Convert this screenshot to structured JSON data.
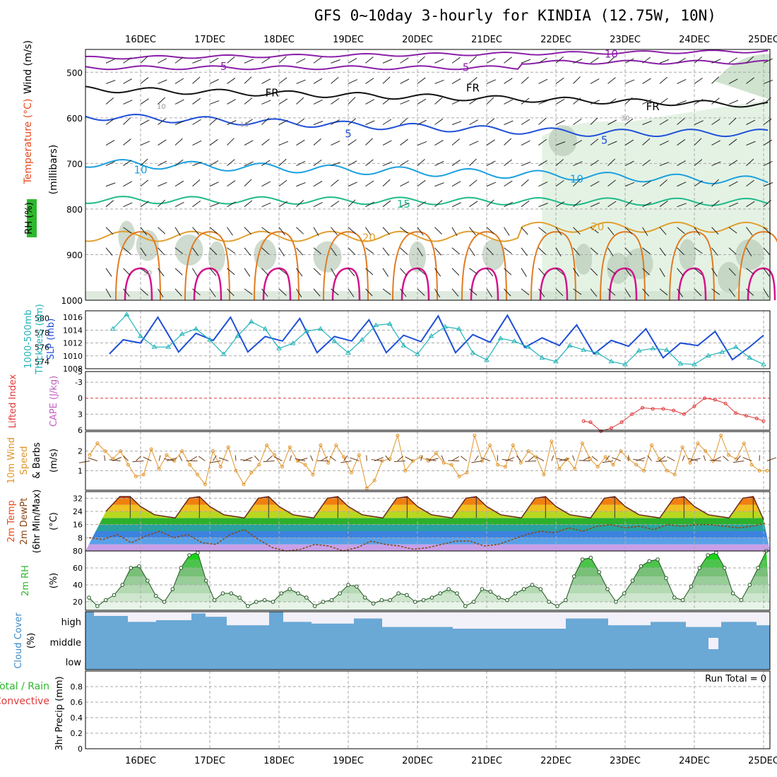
{
  "title": "GFS 0~10day 3-hourly for KINDIA (12.75W, 10N)",
  "dates": [
    "16DEC",
    "17DEC",
    "18DEC",
    "19DEC",
    "20DEC",
    "21DEC",
    "22DEC",
    "23DEC",
    "24DEC",
    "25DEC"
  ],
  "labels": {
    "p1": [
      "Wind (m/s)",
      "Temperature (°C)",
      "RH (%)",
      "(millibars)"
    ],
    "p2": [
      "1000-500mb",
      "Thickness (dm)",
      "SLP (mb)"
    ],
    "p3": [
      "Lifted Index",
      "CAPE (J/kg)"
    ],
    "p4": [
      "10m Wind",
      "Speed",
      "& Barbs",
      "(m/s)"
    ],
    "p5": [
      "2m Temp",
      "2m DewPt",
      "(6hr Min/Max)",
      "(°C)"
    ],
    "p6": [
      "2m RH",
      "(%)"
    ],
    "p7": [
      "Cloud Cover",
      "(%)"
    ],
    "p8": [
      "Total / Rain",
      "Convective",
      "3hr Precip (mm)"
    ]
  },
  "run_total": "Run Total = 0",
  "colors": {
    "slp": "#1f4fd8",
    "thickness": "#22b3b8",
    "li": "#e03a3a",
    "wind10": "#e0952a",
    "cloud": "#6aa8d6",
    "rh": "#2db82d",
    "temp_hi": "#cc2200",
    "dew": "#8b4513"
  },
  "chart_data": [
    {
      "type": "contour",
      "name": "upper-air cross section",
      "ylabel": "millibars",
      "y_ticks": [
        500,
        600,
        700,
        800,
        900,
        1000
      ],
      "contour_labels": [
        "5",
        "5",
        "10",
        "FR",
        "FR",
        "FR",
        "5",
        "5",
        "10",
        "10",
        "15",
        "20",
        "20",
        "30",
        "30",
        "10",
        "10"
      ],
      "rh_levels_pct": [
        30,
        50,
        70,
        90
      ]
    },
    {
      "type": "line",
      "name": "1000-500mb thickness and SLP",
      "x_unit": "days since 15DEC 12Z",
      "slp_ticks": [
        1008,
        1010,
        1012,
        1014,
        1016
      ],
      "thickness_ticks": [
        574,
        576,
        578,
        580
      ],
      "slp_ylim": [
        1008,
        1017
      ],
      "thickness_ylim": [
        573,
        581
      ],
      "series": [
        {
          "name": "SLP (mb)",
          "x": [
            0.05,
            0.25,
            0.5,
            0.75,
            1.05,
            1.3,
            1.55,
            1.8,
            2.05,
            2.3,
            2.55,
            2.8,
            3.05,
            3.3,
            3.55,
            3.8,
            4.05,
            4.3,
            4.55,
            4.8,
            5.05,
            5.3,
            5.55,
            5.8,
            6.05,
            6.3,
            6.55,
            6.8,
            7.05,
            7.3,
            7.55,
            7.8,
            8.05,
            8.3,
            8.55,
            8.8,
            9.05,
            9.3,
            9.5
          ],
          "values": [
            1010.3,
            1012.5,
            1012.0,
            1016.0,
            1010.6,
            1013.5,
            1012.4,
            1016.0,
            1010.6,
            1013.0,
            1012.3,
            1015.8,
            1010.5,
            1013.0,
            1012.3,
            1015.6,
            1010.5,
            1013.2,
            1012.2,
            1016.2,
            1010.5,
            1013.3,
            1012.1,
            1016.3,
            1011.3,
            1012.8,
            1011.6,
            1014.8,
            1010.3,
            1012.4,
            1011.5,
            1014.2,
            1009.7,
            1012.0,
            1011.6,
            1013.8,
            1009.4,
            1011.4,
            1013.2
          ]
        },
        {
          "name": "Thickness (dm)",
          "x": [
            0.1,
            0.3,
            0.5,
            0.7,
            0.9,
            1.1,
            1.3,
            1.5,
            1.7,
            1.9,
            2.1,
            2.3,
            2.5,
            2.7,
            2.9,
            3.1,
            3.3,
            3.5,
            3.7,
            3.9,
            4.1,
            4.3,
            4.5,
            4.7,
            4.9,
            5.1,
            5.3,
            5.5,
            5.7,
            5.9,
            6.1,
            6.3,
            6.5,
            6.7,
            6.9,
            7.1,
            7.3,
            7.5,
            7.7,
            7.9,
            8.1,
            8.3,
            8.5,
            8.7,
            8.9,
            9.1,
            9.3,
            9.5
          ],
          "values": [
            578.5,
            580.5,
            577.5,
            576.0,
            576.0,
            577.8,
            578.5,
            577.0,
            575.0,
            577.5,
            579.5,
            578.5,
            575.8,
            576.5,
            578.2,
            578.5,
            576.8,
            575.2,
            577.0,
            579.0,
            579.2,
            576.2,
            575.0,
            577.5,
            578.8,
            578.5,
            575.2,
            574.2,
            577.2,
            576.8,
            576.0,
            574.5,
            574.0,
            576.2,
            575.6,
            575.2,
            574.0,
            573.6,
            575.5,
            575.8,
            575.6,
            573.7,
            573.6,
            574.8,
            575.3,
            576.0,
            574.5,
            573.6
          ]
        }
      ]
    },
    {
      "type": "line",
      "name": "Lifted Index / CAPE",
      "x_unit": "days since 15DEC 12Z",
      "ylim": [
        6,
        -5
      ],
      "y_ticks": [
        -5,
        -3,
        0,
        3,
        6
      ],
      "series": [
        {
          "name": "Lifted Index",
          "x": [
            6.9,
            7.0,
            7.15,
            7.3,
            7.45,
            7.6,
            7.75,
            7.9,
            8.05,
            8.2,
            8.35,
            8.5,
            8.65,
            8.8,
            8.95,
            9.1,
            9.25,
            9.4,
            9.5
          ],
          "values": [
            4.3,
            4.5,
            6.2,
            5.6,
            4.5,
            3.0,
            1.8,
            2.0,
            2.0,
            2.3,
            3.0,
            1.5,
            0.0,
            0.3,
            1.0,
            2.8,
            3.3,
            3.8,
            4.3
          ]
        }
      ]
    },
    {
      "type": "line",
      "name": "10m wind speed",
      "x_unit": "days since 15DEC 12Z",
      "ylabel": "(m/s)",
      "ylim": [
        0,
        3
      ],
      "y_ticks": [
        1,
        2
      ],
      "series": [
        {
          "name": "10m Wind Speed",
          "values": [
            1.8,
            2.4,
            2.0,
            1.6,
            2.0,
            1.3,
            0.7,
            0.8,
            2.1,
            1.1,
            1.8,
            1.5,
            2.0,
            1.3,
            0.8,
            0.3,
            2.0,
            1.2,
            2.2,
            1.0,
            0.3,
            0.9,
            1.3,
            2.3,
            1.8,
            1.2,
            2.2,
            1.5,
            1.3,
            0.8,
            2.3,
            1.4,
            2.3,
            1.7,
            0.9,
            1.8,
            0.1,
            0.5,
            1.5,
            1.6,
            2.8,
            1.0,
            1.5,
            1.7,
            1.5,
            1.9,
            1.4,
            1.3,
            0.7,
            0.9,
            2.8,
            1.5,
            2.3,
            1.3,
            1.2,
            2.3,
            1.4,
            2.0,
            1.7,
            0.8,
            2.5,
            1.1,
            1.6,
            1.1,
            2.4,
            1.6,
            1.2,
            1.7,
            1.3,
            2.0,
            1.6,
            1.3,
            1.0,
            2.3,
            1.6,
            1.0,
            0.8,
            2.2,
            1.4,
            2.4,
            2.0,
            1.5,
            2.8,
            1.8,
            1.6,
            2.4,
            1.3,
            1.0,
            1.0
          ]
        }
      ]
    },
    {
      "type": "area",
      "name": "2m temperature and dewpoint",
      "x_unit": "days since 15DEC 12Z",
      "ylabel": "(°C)",
      "ylim": [
        0,
        36
      ],
      "y_ticks": [
        8,
        16,
        24,
        32
      ],
      "series": [
        {
          "name": "2m Temp",
          "x": [
            0,
            0.2,
            0.35,
            0.5,
            0.7,
            1.0,
            1.2,
            1.35,
            1.5,
            1.7,
            2.0,
            2.2,
            2.35,
            2.5,
            2.7,
            3.0,
            3.2,
            3.35,
            3.5,
            3.7,
            4.0,
            4.2,
            4.35,
            4.5,
            4.7,
            5.0,
            5.2,
            5.35,
            5.5,
            5.7,
            6.0,
            6.2,
            6.35,
            6.5,
            6.7,
            7.0,
            7.2,
            7.35,
            7.5,
            7.7,
            8.0,
            8.2,
            8.35,
            8.5,
            8.7,
            9.0,
            9.2,
            9.35,
            9.5
          ],
          "values": [
            24,
            33,
            33,
            27,
            22,
            20,
            32,
            33,
            27,
            22,
            20,
            32,
            33,
            27,
            22,
            20,
            32,
            33,
            27,
            22,
            20,
            32,
            33,
            27,
            22,
            20,
            32,
            33,
            27,
            22,
            20,
            32,
            33,
            27,
            22,
            20,
            32,
            33,
            27,
            22,
            20,
            32,
            33,
            27,
            22,
            20,
            32,
            33,
            19
          ]
        },
        {
          "name": "2m DewPt",
          "values": [
            8,
            7,
            10,
            5,
            9,
            12,
            8,
            10,
            5,
            4,
            10,
            13,
            7,
            2,
            0,
            1,
            4,
            3,
            0,
            2,
            6,
            4,
            3,
            1,
            2,
            4,
            6,
            6,
            3,
            4,
            7,
            10,
            12,
            11,
            14,
            12,
            15,
            16,
            14,
            15,
            13,
            16,
            15,
            16,
            16,
            15,
            14,
            15,
            17
          ]
        }
      ]
    },
    {
      "type": "line",
      "name": "2m RH",
      "x_unit": "days since 15DEC 12Z",
      "ylabel": "(%)",
      "ylim": [
        10,
        80
      ],
      "y_ticks": [
        20,
        40,
        60,
        80
      ],
      "series": [
        {
          "name": "2m RH",
          "values": [
            25,
            15,
            22,
            28,
            40,
            60,
            62,
            45,
            27,
            20,
            35,
            60,
            75,
            78,
            45,
            22,
            30,
            30,
            25,
            15,
            20,
            22,
            20,
            30,
            35,
            30,
            25,
            15,
            20,
            22,
            30,
            40,
            38,
            25,
            18,
            22,
            22,
            30,
            28,
            20,
            22,
            25,
            30,
            35,
            30,
            15,
            20,
            35,
            32,
            25,
            22,
            30,
            35,
            40,
            35,
            20,
            15,
            22,
            50,
            70,
            72,
            55,
            35,
            20,
            30,
            45,
            62,
            68,
            70,
            48,
            25,
            22,
            38,
            60,
            75,
            78,
            60,
            30,
            22,
            40,
            60,
            80
          ]
        }
      ]
    },
    {
      "type": "heatmap",
      "name": "cloud cover",
      "categories": [
        "high",
        "middle",
        "low"
      ]
    },
    {
      "type": "bar",
      "name": "3hr precipitation",
      "ylabel": "(mm)",
      "ylim": [
        0,
        1
      ],
      "y_ticks": [
        0,
        0.2,
        0.4,
        0.6,
        0.8
      ],
      "values": []
    }
  ]
}
